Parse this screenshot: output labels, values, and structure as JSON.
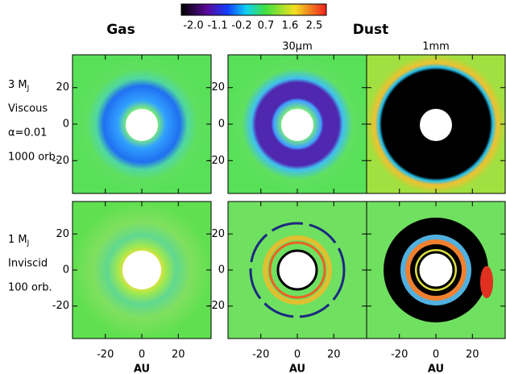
{
  "figure": {
    "colorbar": {
      "range": [
        -2.0,
        2.5
      ],
      "ticks": [
        {
          "value": -2.0,
          "label": "-2.0"
        },
        {
          "value": -1.1,
          "label": "-1.1"
        },
        {
          "value": -0.2,
          "label": "-0.2"
        },
        {
          "value": 0.7,
          "label": "0.7"
        },
        {
          "value": 1.6,
          "label": "1.6"
        },
        {
          "value": 2.5,
          "label": "2.5"
        }
      ]
    },
    "headings": {
      "gas": "Gas",
      "dust": "Dust"
    },
    "columns": [
      "30μm",
      "1mm"
    ],
    "rows": [
      {
        "planet": "3 M",
        "planet_sub": "J",
        "lines": [
          "Viscous",
          "α=0.01",
          "1000 orb."
        ]
      },
      {
        "planet": "1 M",
        "planet_sub": "J",
        "lines": [
          "Inviscid",
          "100 orb."
        ]
      }
    ],
    "axes": {
      "xlim": [
        -38,
        38
      ],
      "ylim": [
        -38,
        38
      ],
      "ticks": [
        -20,
        0,
        20
      ],
      "xlabel": "AU"
    }
  }
}
